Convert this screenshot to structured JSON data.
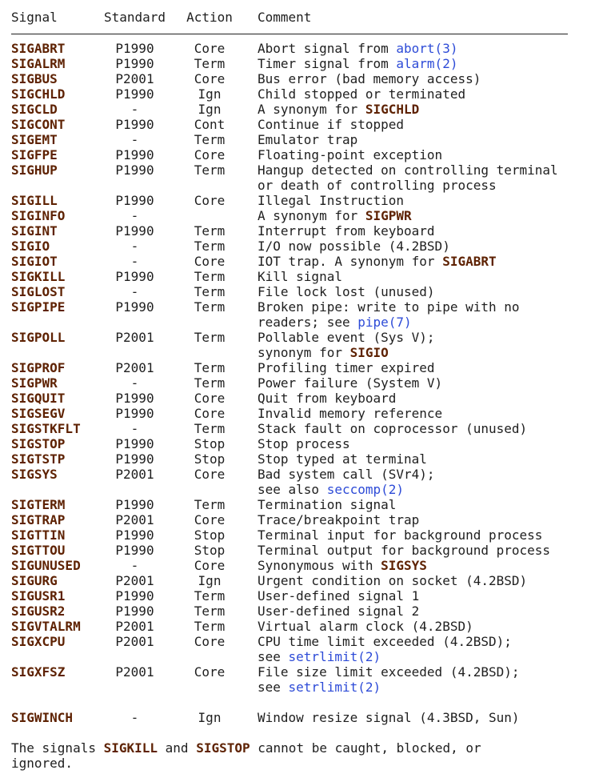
{
  "colors": {
    "background": "#ffffff",
    "text": "#202020",
    "signal_bold": "#5e2203",
    "link": "#2d4bd7",
    "rule": "#1f1f1f"
  },
  "table": {
    "headers": [
      "Signal",
      "Standard",
      "Action",
      "Comment"
    ],
    "rows": [
      {
        "signal": "SIGABRT",
        "standard": "P1990",
        "action": "Core",
        "comment": [
          [
            {
              "text": "Abort signal from ",
              "style": "plain"
            },
            {
              "text": "abort(3)",
              "style": "link"
            }
          ]
        ]
      },
      {
        "signal": "SIGALRM",
        "standard": "P1990",
        "action": "Term",
        "comment": [
          [
            {
              "text": "Timer signal from ",
              "style": "plain"
            },
            {
              "text": "alarm(2)",
              "style": "link"
            }
          ]
        ]
      },
      {
        "signal": "SIGBUS",
        "standard": "P2001",
        "action": "Core",
        "comment": [
          [
            {
              "text": "Bus error (bad memory access)",
              "style": "plain"
            }
          ]
        ]
      },
      {
        "signal": "SIGCHLD",
        "standard": "P1990",
        "action": "Ign",
        "comment": [
          [
            {
              "text": "Child stopped or terminated",
              "style": "plain"
            }
          ]
        ]
      },
      {
        "signal": "SIGCLD",
        "standard": "-",
        "action": "Ign",
        "comment": [
          [
            {
              "text": "A synonym for ",
              "style": "plain"
            },
            {
              "text": "SIGCHLD",
              "style": "signal-ref"
            }
          ]
        ]
      },
      {
        "signal": "SIGCONT",
        "standard": "P1990",
        "action": "Cont",
        "comment": [
          [
            {
              "text": "Continue if stopped",
              "style": "plain"
            }
          ]
        ]
      },
      {
        "signal": "SIGEMT",
        "standard": "-",
        "action": "Term",
        "comment": [
          [
            {
              "text": "Emulator trap",
              "style": "plain"
            }
          ]
        ]
      },
      {
        "signal": "SIGFPE",
        "standard": "P1990",
        "action": "Core",
        "comment": [
          [
            {
              "text": "Floating-point exception",
              "style": "plain"
            }
          ]
        ]
      },
      {
        "signal": "SIGHUP",
        "standard": "P1990",
        "action": "Term",
        "comment": [
          [
            {
              "text": "Hangup detected on controlling terminal",
              "style": "plain"
            }
          ],
          [
            {
              "text": "or death of controlling process",
              "style": "plain"
            }
          ]
        ]
      },
      {
        "signal": "SIGILL",
        "standard": "P1990",
        "action": "Core",
        "comment": [
          [
            {
              "text": "Illegal Instruction",
              "style": "plain"
            }
          ]
        ]
      },
      {
        "signal": "SIGINFO",
        "standard": "-",
        "action": "",
        "comment": [
          [
            {
              "text": "A synonym for ",
              "style": "plain"
            },
            {
              "text": "SIGPWR",
              "style": "signal-ref"
            }
          ]
        ]
      },
      {
        "signal": "SIGINT",
        "standard": "P1990",
        "action": "Term",
        "comment": [
          [
            {
              "text": "Interrupt from keyboard",
              "style": "plain"
            }
          ]
        ]
      },
      {
        "signal": "SIGIO",
        "standard": "-",
        "action": "Term",
        "comment": [
          [
            {
              "text": "I/O now possible (4.2BSD)",
              "style": "plain"
            }
          ]
        ]
      },
      {
        "signal": "SIGIOT",
        "standard": "-",
        "action": "Core",
        "comment": [
          [
            {
              "text": "IOT trap. A synonym for ",
              "style": "plain"
            },
            {
              "text": "SIGABRT",
              "style": "signal-ref"
            }
          ]
        ]
      },
      {
        "signal": "SIGKILL",
        "standard": "P1990",
        "action": "Term",
        "comment": [
          [
            {
              "text": "Kill signal",
              "style": "plain"
            }
          ]
        ]
      },
      {
        "signal": "SIGLOST",
        "standard": "-",
        "action": "Term",
        "comment": [
          [
            {
              "text": "File lock lost (unused)",
              "style": "plain"
            }
          ]
        ]
      },
      {
        "signal": "SIGPIPE",
        "standard": "P1990",
        "action": "Term",
        "comment": [
          [
            {
              "text": "Broken pipe: write to pipe with no",
              "style": "plain"
            }
          ],
          [
            {
              "text": "readers; see ",
              "style": "plain"
            },
            {
              "text": "pipe(7)",
              "style": "link"
            }
          ]
        ]
      },
      {
        "signal": "SIGPOLL",
        "standard": "P2001",
        "action": "Term",
        "comment": [
          [
            {
              "text": "Pollable event (Sys V);",
              "style": "plain"
            }
          ],
          [
            {
              "text": "synonym for ",
              "style": "plain"
            },
            {
              "text": "SIGIO",
              "style": "signal-ref"
            }
          ]
        ]
      },
      {
        "signal": "SIGPROF",
        "standard": "P2001",
        "action": "Term",
        "comment": [
          [
            {
              "text": "Profiling timer expired",
              "style": "plain"
            }
          ]
        ]
      },
      {
        "signal": "SIGPWR",
        "standard": "-",
        "action": "Term",
        "comment": [
          [
            {
              "text": "Power failure (System V)",
              "style": "plain"
            }
          ]
        ]
      },
      {
        "signal": "SIGQUIT",
        "standard": "P1990",
        "action": "Core",
        "comment": [
          [
            {
              "text": "Quit from keyboard",
              "style": "plain"
            }
          ]
        ]
      },
      {
        "signal": "SIGSEGV",
        "standard": "P1990",
        "action": "Core",
        "comment": [
          [
            {
              "text": "Invalid memory reference",
              "style": "plain"
            }
          ]
        ]
      },
      {
        "signal": "SIGSTKFLT",
        "standard": "-",
        "action": "Term",
        "comment": [
          [
            {
              "text": "Stack fault on coprocessor (unused)",
              "style": "plain"
            }
          ]
        ]
      },
      {
        "signal": "SIGSTOP",
        "standard": "P1990",
        "action": "Stop",
        "comment": [
          [
            {
              "text": "Stop process",
              "style": "plain"
            }
          ]
        ]
      },
      {
        "signal": "SIGTSTP",
        "standard": "P1990",
        "action": "Stop",
        "comment": [
          [
            {
              "text": "Stop typed at terminal",
              "style": "plain"
            }
          ]
        ]
      },
      {
        "signal": "SIGSYS",
        "standard": "P2001",
        "action": "Core",
        "comment": [
          [
            {
              "text": "Bad system call (SVr4);",
              "style": "plain"
            }
          ],
          [
            {
              "text": "see also ",
              "style": "plain"
            },
            {
              "text": "seccomp(2)",
              "style": "link"
            }
          ]
        ]
      },
      {
        "signal": "SIGTERM",
        "standard": "P1990",
        "action": "Term",
        "comment": [
          [
            {
              "text": "Termination signal",
              "style": "plain"
            }
          ]
        ]
      },
      {
        "signal": "SIGTRAP",
        "standard": "P2001",
        "action": "Core",
        "comment": [
          [
            {
              "text": "Trace/breakpoint trap",
              "style": "plain"
            }
          ]
        ]
      },
      {
        "signal": "SIGTTIN",
        "standard": "P1990",
        "action": "Stop",
        "comment": [
          [
            {
              "text": "Terminal input for background process",
              "style": "plain"
            }
          ]
        ]
      },
      {
        "signal": "SIGTTOU",
        "standard": "P1990",
        "action": "Stop",
        "comment": [
          [
            {
              "text": "Terminal output for background process",
              "style": "plain"
            }
          ]
        ]
      },
      {
        "signal": "SIGUNUSED",
        "standard": "-",
        "action": "Core",
        "comment": [
          [
            {
              "text": "Synonymous with ",
              "style": "plain"
            },
            {
              "text": "SIGSYS",
              "style": "signal-ref"
            }
          ]
        ]
      },
      {
        "signal": "SIGURG",
        "standard": "P2001",
        "action": "Ign",
        "comment": [
          [
            {
              "text": "Urgent condition on socket (4.2BSD)",
              "style": "plain"
            }
          ]
        ]
      },
      {
        "signal": "SIGUSR1",
        "standard": "P1990",
        "action": "Term",
        "comment": [
          [
            {
              "text": "User-defined signal 1",
              "style": "plain"
            }
          ]
        ]
      },
      {
        "signal": "SIGUSR2",
        "standard": "P1990",
        "action": "Term",
        "comment": [
          [
            {
              "text": "User-defined signal 2",
              "style": "plain"
            }
          ]
        ]
      },
      {
        "signal": "SIGVTALRM",
        "standard": "P2001",
        "action": "Term",
        "comment": [
          [
            {
              "text": "Virtual alarm clock (4.2BSD)",
              "style": "plain"
            }
          ]
        ]
      },
      {
        "signal": "SIGXCPU",
        "standard": "P2001",
        "action": "Core",
        "comment": [
          [
            {
              "text": "CPU time limit exceeded (4.2BSD);",
              "style": "plain"
            }
          ],
          [
            {
              "text": "see ",
              "style": "plain"
            },
            {
              "text": "setrlimit(2)",
              "style": "link"
            }
          ]
        ]
      },
      {
        "signal": "SIGXFSZ",
        "standard": "P2001",
        "action": "Core",
        "comment": [
          [
            {
              "text": "File size limit exceeded (4.2BSD);",
              "style": "plain"
            }
          ],
          [
            {
              "text": "see ",
              "style": "plain"
            },
            {
              "text": "setrlimit(2)",
              "style": "link"
            }
          ]
        ]
      },
      {
        "signal": "SIGWINCH",
        "standard": "-",
        "action": "Ign",
        "gap_before": true,
        "comment": [
          [
            {
              "text": "Window resize signal (4.3BSD, Sun)",
              "style": "plain"
            }
          ]
        ]
      }
    ]
  },
  "footer": {
    "lines": [
      [
        {
          "text": "The signals ",
          "style": "plain"
        },
        {
          "text": "SIGKILL",
          "style": "signal-ref"
        },
        {
          "text": " and ",
          "style": "plain"
        },
        {
          "text": "SIGSTOP",
          "style": "signal-ref"
        },
        {
          "text": " cannot be caught, blocked, or",
          "style": "plain"
        }
      ],
      [
        {
          "text": "ignored.",
          "style": "plain"
        }
      ]
    ]
  }
}
